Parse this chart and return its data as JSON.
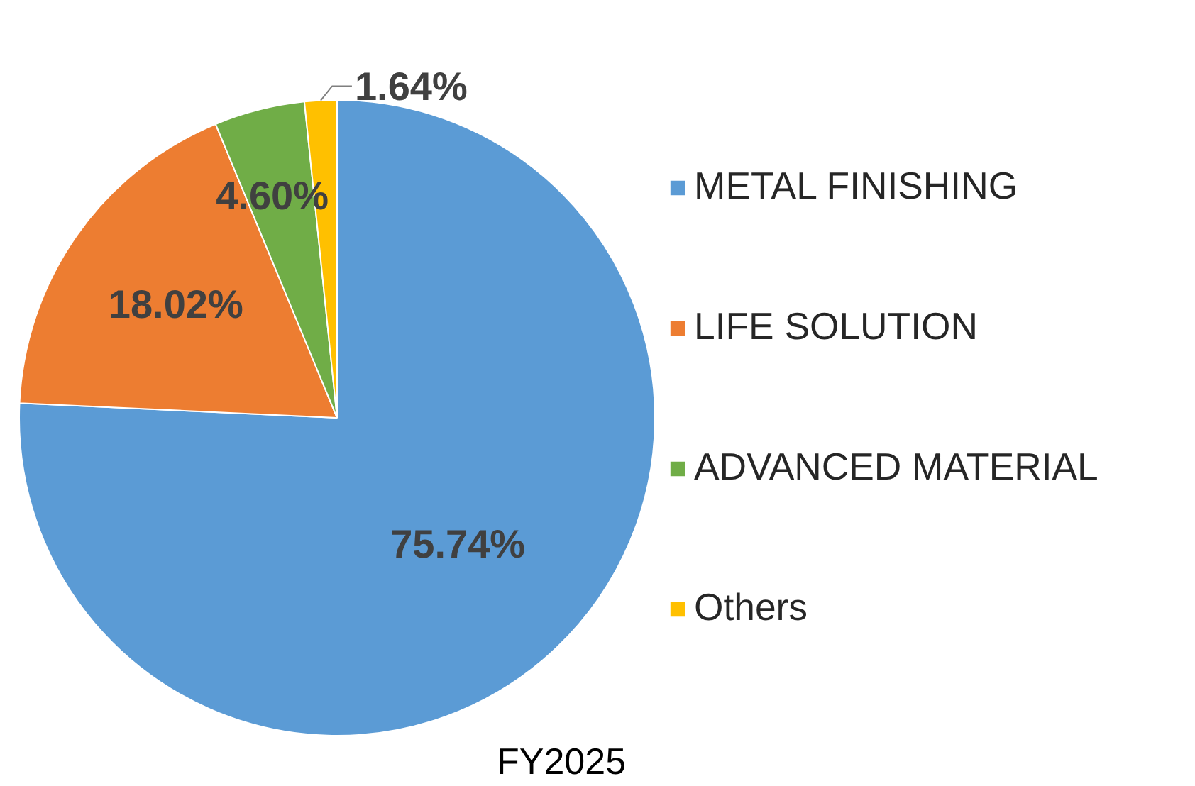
{
  "chart_data": {
    "type": "pie",
    "title": "FY2025",
    "categories": [
      "METAL FINISHING",
      "LIFE SOLUTION",
      "ADVANCED MATERIAL",
      "Others"
    ],
    "values": [
      75.74,
      18.02,
      4.6,
      1.64
    ],
    "value_labels": [
      "75.74%",
      "18.02%",
      "4.60%",
      "1.64%"
    ],
    "colors": [
      "#5b9bd5",
      "#ed7d31",
      "#70ad47",
      "#ffc000"
    ],
    "legend": "right"
  }
}
